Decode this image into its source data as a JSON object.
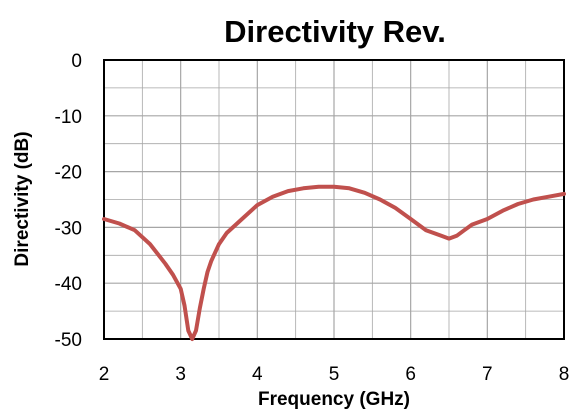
{
  "chart_data": {
    "type": "line",
    "title": "Directivity Rev.",
    "xlabel": "Frequency (GHz)",
    "ylabel": "Directivity (dB)",
    "xlim": [
      2,
      8
    ],
    "ylim": [
      -50,
      0
    ],
    "xticks": [
      "2",
      "3",
      "4",
      "5",
      "6",
      "7",
      "8"
    ],
    "yticks": [
      "0",
      "-10",
      "-20",
      "-30",
      "-40",
      "-50"
    ],
    "grid": true,
    "legend": "none",
    "series_color": "#c0504d",
    "gridline_color": "#a6a6a6",
    "x": [
      2.0,
      2.2,
      2.4,
      2.6,
      2.8,
      2.9,
      3.0,
      3.05,
      3.1,
      3.15,
      3.2,
      3.25,
      3.3,
      3.35,
      3.4,
      3.5,
      3.6,
      3.8,
      4.0,
      4.2,
      4.4,
      4.6,
      4.8,
      5.0,
      5.2,
      5.4,
      5.6,
      5.8,
      6.0,
      6.2,
      6.4,
      6.5,
      6.6,
      6.7,
      6.8,
      7.0,
      7.2,
      7.4,
      7.6,
      7.8,
      8.0
    ],
    "y": [
      -28.5,
      -29.3,
      -30.5,
      -33.0,
      -36.5,
      -38.5,
      -41.0,
      -44.0,
      -48.5,
      -50.0,
      -48.5,
      -44.5,
      -41.0,
      -38.0,
      -36.0,
      -33.0,
      -31.0,
      -28.5,
      -26.0,
      -24.5,
      -23.5,
      -23.0,
      -22.7,
      -22.7,
      -23.0,
      -23.8,
      -25.0,
      -26.5,
      -28.5,
      -30.5,
      -31.5,
      -32.0,
      -31.5,
      -30.5,
      -29.5,
      -28.5,
      -27.0,
      -25.8,
      -25.0,
      -24.5,
      -24.0
    ]
  }
}
